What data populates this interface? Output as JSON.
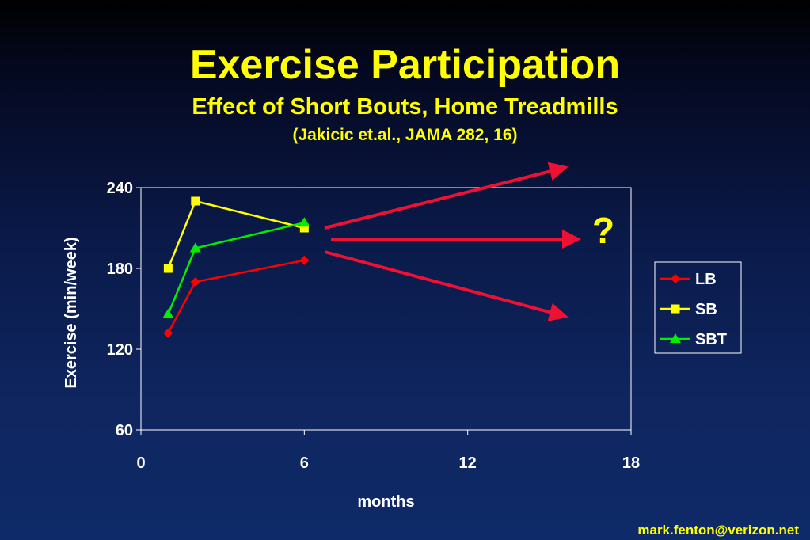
{
  "slide": {
    "title": "Exercise Participation",
    "subtitle": "Effect of Short Bouts, Home Treadmills",
    "citation": "(Jakicic et.al., JAMA 282, 16)",
    "footer": "mark.fenton@verizon.net"
  },
  "chart_data": {
    "type": "line",
    "xlabel": "months",
    "ylabel": "Exercise (min/week)",
    "xlim": [
      0,
      18
    ],
    "ylim": [
      60,
      240
    ],
    "x_ticks": [
      0,
      6,
      12,
      18
    ],
    "y_ticks": [
      60,
      120,
      180,
      240
    ],
    "legend_placement": "right",
    "grid": false,
    "series": [
      {
        "name": "LB",
        "color": "#ff0000",
        "marker": "diamond",
        "x": [
          1,
          2,
          6
        ],
        "y": [
          132,
          170,
          186
        ]
      },
      {
        "name": "SB",
        "color": "#ffff00",
        "marker": "square",
        "x": [
          1,
          2,
          6
        ],
        "y": [
          180,
          230,
          210
        ]
      },
      {
        "name": "SBT",
        "color": "#00ee00",
        "marker": "triangle",
        "x": [
          1,
          2,
          6
        ],
        "y": [
          146,
          195,
          214
        ]
      }
    ],
    "annotations": {
      "question_mark": "?",
      "arrow_color": "#ee1133"
    }
  }
}
